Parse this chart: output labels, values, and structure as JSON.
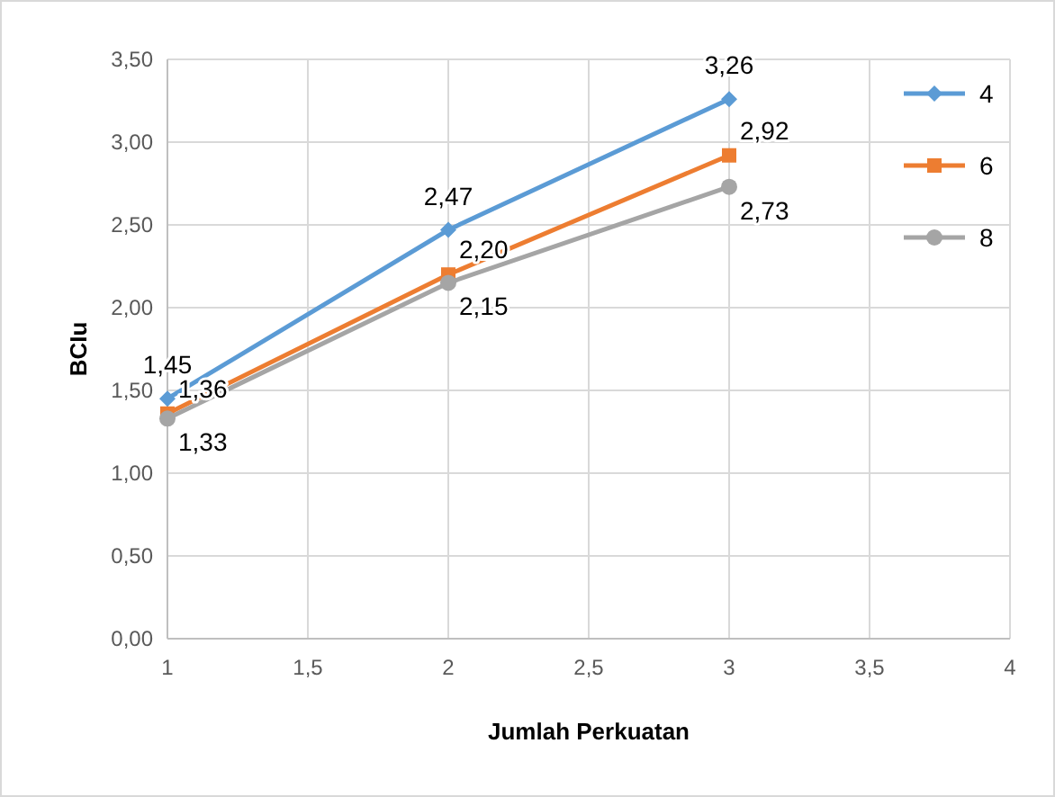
{
  "chart_data": {
    "type": "line",
    "xlabel": "Jumlah Perkuatan",
    "ylabel": "BCIu",
    "x": [
      1,
      2,
      3
    ],
    "xlim": [
      1,
      4
    ],
    "xticks": [
      1,
      {
        "value": 1.5,
        "label": "1,5"
      },
      2,
      {
        "value": 2.5,
        "label": "2,5"
      },
      3,
      {
        "value": 3.5,
        "label": "3,5"
      },
      4
    ],
    "ylim": [
      0,
      3.5
    ],
    "yticks": [
      {
        "value": 0,
        "label": "0,00"
      },
      {
        "value": 0.5,
        "label": "0,50"
      },
      {
        "value": 1,
        "label": "1,00"
      },
      {
        "value": 1.5,
        "label": "1,50"
      },
      {
        "value": 2,
        "label": "2,00"
      },
      {
        "value": 2.5,
        "label": "2,50"
      },
      {
        "value": 3,
        "label": "3,00"
      },
      {
        "value": 3.5,
        "label": "3,50"
      }
    ],
    "grid": true,
    "legend": "right",
    "line_style": "solid",
    "series": [
      {
        "name": "4",
        "color": "#5b9bd5",
        "marker": "diamond",
        "values": [
          1.45,
          2.47,
          3.26
        ],
        "value_labels": [
          "1,45",
          "2,47",
          "3,26"
        ]
      },
      {
        "name": "6",
        "color": "#ed7d31",
        "marker": "square",
        "values": [
          1.36,
          2.2,
          2.92
        ],
        "value_labels": [
          "1,36",
          "2,20",
          "2,92"
        ]
      },
      {
        "name": "8",
        "color": "#a5a5a5",
        "marker": "circle",
        "values": [
          1.33,
          2.15,
          2.73
        ],
        "value_labels": [
          "1,33",
          "2,15",
          "2,73"
        ]
      }
    ]
  }
}
